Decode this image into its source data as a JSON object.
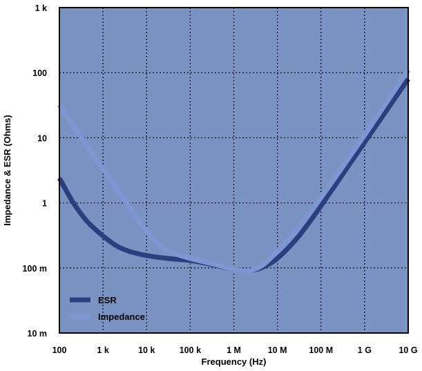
{
  "chart_data": {
    "type": "line",
    "title": "",
    "xlabel": "Frequency (Hz)",
    "ylabel": "Impedance & ESR (Ohms)",
    "x_scale": "log",
    "y_scale": "log",
    "xlim": [
      100,
      10000000000
    ],
    "ylim": [
      0.01,
      1000
    ],
    "grid": true,
    "legend": "bottom-left",
    "background": "#7b93c2",
    "x_ticks": [
      {
        "value": 100,
        "label": "100"
      },
      {
        "value": 1000,
        "label": "1 k"
      },
      {
        "value": 10000,
        "label": "10 k"
      },
      {
        "value": 100000,
        "label": "100 k"
      },
      {
        "value": 1000000,
        "label": "1 M"
      },
      {
        "value": 10000000,
        "label": "10 M"
      },
      {
        "value": 100000000,
        "label": "100 M"
      },
      {
        "value": 1000000000,
        "label": "1 G"
      },
      {
        "value": 10000000000,
        "label": "10 G"
      }
    ],
    "y_ticks": [
      {
        "value": 0.01,
        "label": "10 m"
      },
      {
        "value": 0.1,
        "label": "100 m"
      },
      {
        "value": 1,
        "label": "1"
      },
      {
        "value": 10,
        "label": "10"
      },
      {
        "value": 100,
        "label": "100"
      },
      {
        "value": 1000,
        "label": "1 k"
      }
    ],
    "series": [
      {
        "name": "ESR",
        "color": "#2b3f7e",
        "points": [
          [
            100,
            2.4
          ],
          [
            200,
            1.05
          ],
          [
            400,
            0.55
          ],
          [
            700,
            0.38
          ],
          [
            1000,
            0.31
          ],
          [
            2000,
            0.22
          ],
          [
            4000,
            0.18
          ],
          [
            10000,
            0.155
          ],
          [
            30000,
            0.14
          ],
          [
            100000,
            0.13
          ],
          [
            200000,
            0.12
          ],
          [
            500000,
            0.105
          ],
          [
            1000000,
            0.095
          ],
          [
            2000000,
            0.09
          ],
          [
            3000000,
            0.093
          ],
          [
            5000000,
            0.105
          ],
          [
            10000000,
            0.14
          ],
          [
            30000000,
            0.3
          ],
          [
            100000000,
            0.9
          ],
          [
            1000000000,
            8.5
          ],
          [
            10000000000,
            80
          ]
        ]
      },
      {
        "name": "Impedance",
        "color": "#7d97d2",
        "points": [
          [
            100,
            32
          ],
          [
            200,
            16
          ],
          [
            500,
            6.5
          ],
          [
            1000,
            3.3
          ],
          [
            2000,
            1.7
          ],
          [
            5000,
            0.7
          ],
          [
            10000,
            0.37
          ],
          [
            20000,
            0.22
          ],
          [
            40000,
            0.17
          ],
          [
            100000,
            0.14
          ],
          [
            200000,
            0.125
          ],
          [
            500000,
            0.107
          ],
          [
            1000000,
            0.095
          ],
          [
            2000000,
            0.09
          ],
          [
            3000000,
            0.095
          ],
          [
            5000000,
            0.115
          ],
          [
            10000000,
            0.18
          ],
          [
            30000000,
            0.4
          ],
          [
            100000000,
            1.2
          ],
          [
            1000000000,
            11
          ],
          [
            10000000000,
            110
          ]
        ]
      }
    ]
  }
}
